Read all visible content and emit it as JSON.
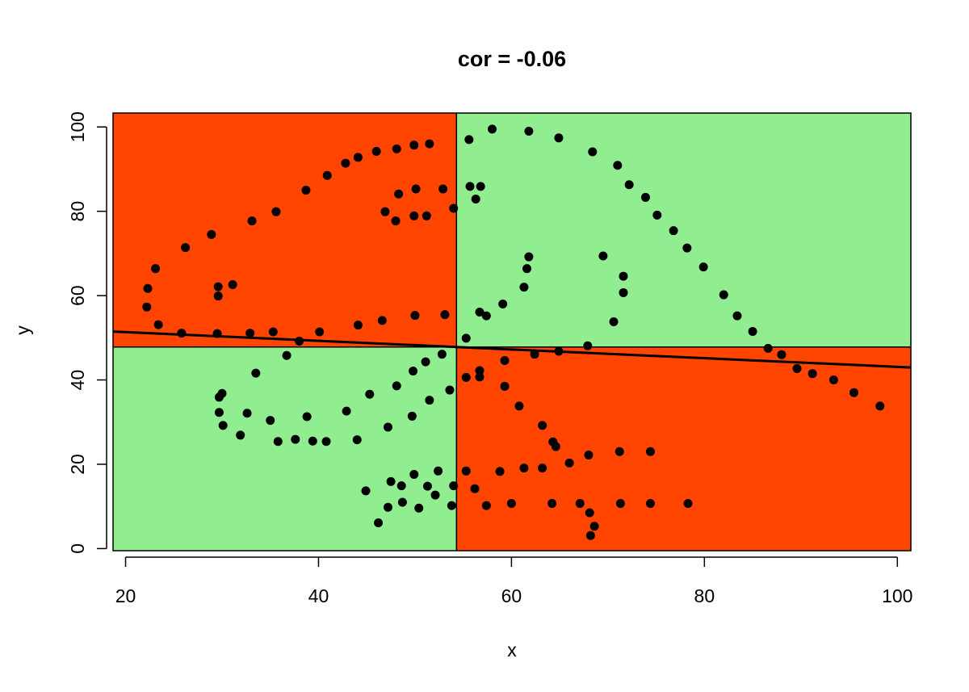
{
  "chart_data": {
    "type": "scatter",
    "title": "cor = -0.06",
    "xlabel": "x",
    "ylabel": "y",
    "xlim": [
      18.7,
      101.4
    ],
    "ylim": [
      -0.5,
      103.3
    ],
    "x_ticks": [
      20,
      40,
      60,
      80,
      100
    ],
    "y_ticks": [
      0,
      20,
      40,
      60,
      80,
      100
    ],
    "x_tick_labels": [
      "20",
      "40",
      "60",
      "80",
      "100"
    ],
    "y_tick_labels": [
      "0",
      "20",
      "40",
      "60",
      "80",
      "100"
    ],
    "grid": false,
    "legend": "none",
    "mean_x": 54.3,
    "mean_y": 47.8,
    "regression_line": {
      "intercept": 53.4,
      "slope": -0.103
    },
    "quadrant_colors": {
      "concordant": "#90EE90",
      "discordant": "#FF4500"
    },
    "point_color": "#000000",
    "line_color": "#000000",
    "points": [
      [
        22.3,
        61.7
      ],
      [
        22.2,
        57.3
      ],
      [
        23.1,
        66.4
      ],
      [
        23.4,
        53.1
      ],
      [
        25.8,
        51.1
      ],
      [
        26.2,
        71.4
      ],
      [
        28.9,
        74.5
      ],
      [
        29.6,
        62.1
      ],
      [
        29.6,
        59.9
      ],
      [
        29.5,
        51.0
      ],
      [
        31.1,
        62.6
      ],
      [
        32.9,
        51.1
      ],
      [
        33.1,
        77.7
      ],
      [
        35.3,
        51.4
      ],
      [
        35.6,
        79.9
      ],
      [
        38.0,
        49.2
      ],
      [
        38.7,
        85.0
      ],
      [
        40.1,
        51.4
      ],
      [
        40.9,
        88.5
      ],
      [
        42.8,
        91.4
      ],
      [
        44.1,
        92.8
      ],
      [
        44.1,
        53.0
      ],
      [
        46.0,
        94.2
      ],
      [
        46.6,
        54.1
      ],
      [
        46.9,
        79.9
      ],
      [
        48.0,
        77.7
      ],
      [
        48.1,
        94.8
      ],
      [
        48.3,
        84.1
      ],
      [
        49.9,
        95.7
      ],
      [
        50.0,
        55.3
      ],
      [
        49.9,
        78.9
      ],
      [
        50.1,
        85.3
      ],
      [
        51.2,
        78.9
      ],
      [
        51.5,
        96.0
      ],
      [
        52.9,
        85.3
      ],
      [
        53.1,
        55.5
      ],
      [
        54.0,
        80.7
      ],
      [
        55.3,
        49.9
      ],
      [
        55.6,
        97.0
      ],
      [
        55.7,
        85.9
      ],
      [
        56.3,
        82.9
      ],
      [
        56.8,
        85.9
      ],
      [
        56.7,
        56.1
      ],
      [
        57.4,
        55.2
      ],
      [
        58.0,
        99.5
      ],
      [
        59.1,
        58.0
      ],
      [
        61.3,
        62.0
      ],
      [
        61.6,
        66.4
      ],
      [
        61.8,
        69.2
      ],
      [
        61.8,
        99.0
      ],
      [
        64.9,
        97.4
      ],
      [
        68.4,
        94.1
      ],
      [
        69.5,
        69.4
      ],
      [
        70.6,
        53.8
      ],
      [
        71.0,
        90.9
      ],
      [
        71.6,
        64.6
      ],
      [
        71.6,
        60.7
      ],
      [
        72.2,
        86.3
      ],
      [
        73.9,
        83.3
      ],
      [
        75.1,
        79.1
      ],
      [
        76.8,
        75.4
      ],
      [
        78.2,
        71.3
      ],
      [
        79.9,
        66.8
      ],
      [
        82.0,
        60.2
      ],
      [
        83.4,
        55.2
      ],
      [
        85.0,
        51.5
      ],
      [
        86.6,
        47.5
      ],
      [
        88.0,
        46.0
      ],
      [
        89.6,
        42.7
      ],
      [
        91.2,
        41.5
      ],
      [
        93.4,
        40.0
      ],
      [
        95.5,
        37.0
      ],
      [
        98.2,
        33.8
      ],
      [
        29.7,
        35.9
      ],
      [
        30.0,
        36.8
      ],
      [
        29.7,
        32.3
      ],
      [
        30.1,
        29.2
      ],
      [
        31.9,
        26.9
      ],
      [
        32.6,
        32.1
      ],
      [
        33.5,
        41.6
      ],
      [
        35.0,
        30.4
      ],
      [
        35.8,
        25.4
      ],
      [
        36.7,
        45.8
      ],
      [
        37.6,
        25.9
      ],
      [
        38.8,
        31.3
      ],
      [
        39.4,
        25.5
      ],
      [
        40.8,
        25.4
      ],
      [
        42.9,
        32.6
      ],
      [
        44.0,
        25.8
      ],
      [
        45.3,
        36.6
      ],
      [
        44.9,
        13.7
      ],
      [
        46.2,
        6.1
      ],
      [
        47.2,
        28.8
      ],
      [
        47.2,
        9.8
      ],
      [
        47.5,
        15.9
      ],
      [
        48.1,
        38.6
      ],
      [
        48.6,
        14.9
      ],
      [
        48.7,
        11.0
      ],
      [
        49.8,
        42.1
      ],
      [
        49.7,
        31.4
      ],
      [
        49.9,
        17.6
      ],
      [
        50.4,
        9.6
      ],
      [
        51.1,
        44.3
      ],
      [
        51.3,
        14.8
      ],
      [
        51.5,
        35.2
      ],
      [
        52.1,
        12.7
      ],
      [
        52.4,
        18.4
      ],
      [
        52.8,
        46.1
      ],
      [
        53.6,
        37.6
      ],
      [
        53.8,
        10.2
      ],
      [
        54.0,
        14.9
      ],
      [
        55.3,
        40.6
      ],
      [
        55.3,
        18.4
      ],
      [
        56.2,
        14.2
      ],
      [
        56.7,
        42.2
      ],
      [
        56.7,
        40.7
      ],
      [
        57.4,
        10.2
      ],
      [
        58.8,
        18.3
      ],
      [
        59.3,
        44.6
      ],
      [
        59.3,
        38.5
      ],
      [
        60.0,
        10.7
      ],
      [
        60.8,
        33.8
      ],
      [
        61.3,
        19.1
      ],
      [
        62.4,
        46.1
      ],
      [
        63.2,
        29.2
      ],
      [
        63.2,
        19.1
      ],
      [
        64.2,
        10.7
      ],
      [
        64.3,
        25.3
      ],
      [
        64.6,
        24.2
      ],
      [
        64.9,
        46.8
      ],
      [
        66.0,
        20.3
      ],
      [
        67.1,
        10.7
      ],
      [
        67.9,
        48.1
      ],
      [
        68.0,
        22.2
      ],
      [
        68.1,
        8.5
      ],
      [
        68.2,
        3.1
      ],
      [
        68.6,
        5.3
      ],
      [
        71.2,
        23.0
      ],
      [
        71.3,
        10.7
      ],
      [
        74.4,
        23.0
      ],
      [
        74.4,
        10.7
      ],
      [
        78.3,
        10.7
      ]
    ]
  }
}
